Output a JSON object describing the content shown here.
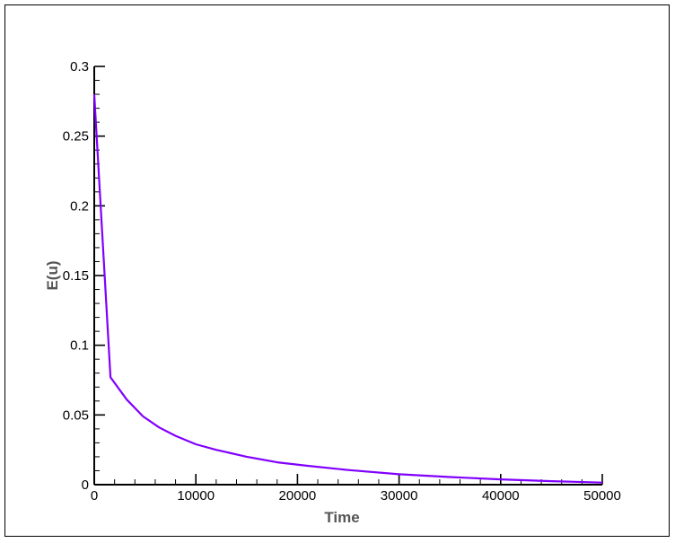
{
  "chart_data": {
    "type": "line",
    "xlabel": "Time",
    "ylabel": "E(u)",
    "xlim": [
      0,
      50000
    ],
    "ylim": [
      0,
      0.3
    ],
    "x_ticks": [
      0,
      10000,
      20000,
      30000,
      40000,
      50000
    ],
    "x_tick_labels": [
      "0",
      "10000",
      "20000",
      "30000",
      "40000",
      "50000"
    ],
    "y_ticks": [
      0,
      0.05,
      0.1,
      0.15,
      0.2,
      0.25,
      0.3
    ],
    "y_tick_labels": [
      "0",
      "0.05",
      "0.1",
      "0.15",
      "0.2",
      "0.25",
      "0.3"
    ],
    "grid": false,
    "line_color": "#8000ff",
    "series": [
      {
        "x": [
          0,
          1600,
          3200,
          4800,
          6400,
          8000,
          10000,
          12000,
          15000,
          18000,
          21000,
          25000,
          30000,
          35000,
          40000,
          45000,
          50000
        ],
        "values": [
          0.28,
          0.077,
          0.061,
          0.049,
          0.041,
          0.035,
          0.029,
          0.025,
          0.02,
          0.016,
          0.0135,
          0.0105,
          0.0075,
          0.0055,
          0.0038,
          0.0025,
          0.0015
        ]
      }
    ]
  }
}
